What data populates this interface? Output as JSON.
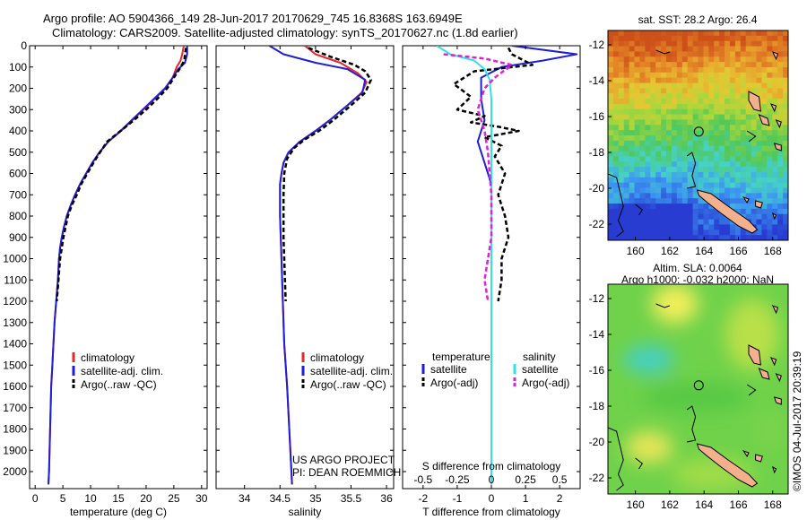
{
  "title": {
    "line1": "Argo profile: AO 5904366_149 28-Jun-2017 20170629_745 16.8368S 163.6949E",
    "line2": "Climatology: CARS2009. Satellite-adjusted climatology: synTS_20170627.nc (1.8d earlier)"
  },
  "credits": {
    "project": "US ARGO PROJECT",
    "pi": "PI: DEAN ROEMMICH",
    "stamp": "©IMOS 04-Jul-2017 20:39:19"
  },
  "colors": {
    "climatology": "#e8262a",
    "satellite": "#1f1fd6",
    "argo": "#000000",
    "sal_satellite": "#33e0e8",
    "sal_argo": "#e020d8",
    "land": "#f4b08c"
  },
  "chart_data": [
    {
      "type": "line",
      "title": "",
      "xlabel": "temperature (deg C)",
      "ylabel": "",
      "xlim": [
        -1,
        31
      ],
      "ylim": [
        2080,
        0
      ],
      "xticks": [
        0,
        5,
        10,
        15,
        20,
        25,
        30
      ],
      "yticks": [
        0,
        100,
        200,
        300,
        400,
        500,
        600,
        700,
        800,
        900,
        1000,
        1100,
        1200,
        1300,
        1400,
        1500,
        1600,
        1700,
        1800,
        1900,
        2000
      ],
      "legend": [
        "climatology",
        "satellite-adj. clim.",
        "Argo(..raw -QC)"
      ],
      "series": [
        {
          "name": "climatology",
          "style": "solid",
          "color": "climatology",
          "points": [
            [
              26.8,
              0
            ],
            [
              26.5,
              40
            ],
            [
              26.2,
              70
            ],
            [
              25.5,
              100
            ],
            [
              24.8,
              150
            ],
            [
              23.5,
              200
            ],
            [
              21.5,
              250
            ],
            [
              19.5,
              300
            ],
            [
              17.5,
              350
            ],
            [
              15.5,
              400
            ],
            [
              13.2,
              450
            ],
            [
              11.6,
              500
            ],
            [
              10.3,
              550
            ],
            [
              9.2,
              600
            ],
            [
              8.1,
              650
            ],
            [
              7.2,
              700
            ],
            [
              6.4,
              750
            ],
            [
              5.7,
              800
            ],
            [
              5.2,
              850
            ],
            [
              4.8,
              900
            ],
            [
              4.5,
              950
            ],
            [
              4.3,
              1000
            ],
            [
              4.1,
              1100
            ],
            [
              3.8,
              1200
            ],
            [
              3.5,
              1300
            ],
            [
              3.3,
              1400
            ],
            [
              3.1,
              1500
            ],
            [
              2.9,
              1600
            ],
            [
              2.8,
              1700
            ],
            [
              2.7,
              1800
            ],
            [
              2.6,
              1900
            ],
            [
              2.5,
              2000
            ],
            [
              2.4,
              2060
            ]
          ]
        },
        {
          "name": "satellite-adj. clim.",
          "style": "solid",
          "color": "satellite",
          "points": [
            [
              27.4,
              0
            ],
            [
              27.4,
              40
            ],
            [
              27.0,
              80
            ],
            [
              25.8,
              110
            ],
            [
              24.8,
              150
            ],
            [
              23.4,
              200
            ],
            [
              21.4,
              250
            ],
            [
              19.4,
              300
            ],
            [
              17.4,
              350
            ],
            [
              15.4,
              400
            ],
            [
              13.2,
              450
            ],
            [
              11.6,
              500
            ],
            [
              10.3,
              550
            ],
            [
              9.2,
              600
            ],
            [
              8.1,
              650
            ],
            [
              7.2,
              700
            ],
            [
              6.4,
              750
            ],
            [
              5.7,
              800
            ],
            [
              5.2,
              850
            ],
            [
              4.8,
              900
            ],
            [
              4.5,
              950
            ],
            [
              4.3,
              1000
            ],
            [
              4.1,
              1100
            ],
            [
              3.8,
              1200
            ],
            [
              3.5,
              1300
            ],
            [
              3.3,
              1400
            ],
            [
              3.1,
              1500
            ],
            [
              2.9,
              1600
            ],
            [
              2.8,
              1700
            ],
            [
              2.7,
              1800
            ],
            [
              2.6,
              1900
            ],
            [
              2.5,
              2000
            ],
            [
              2.4,
              2060
            ]
          ]
        },
        {
          "name": "Argo(..raw -QC)",
          "style": "dashed",
          "color": "argo",
          "points": [
            [
              27.2,
              10
            ],
            [
              27.0,
              40
            ],
            [
              26.9,
              70
            ],
            [
              26.0,
              110
            ],
            [
              25.0,
              150
            ],
            [
              23.8,
              200
            ],
            [
              22.0,
              250
            ],
            [
              20.0,
              300
            ],
            [
              17.8,
              350
            ],
            [
              15.4,
              400
            ],
            [
              13.0,
              450
            ],
            [
              11.7,
              500
            ],
            [
              10.5,
              550
            ],
            [
              9.4,
              600
            ],
            [
              8.3,
              650
            ],
            [
              7.5,
              700
            ],
            [
              6.6,
              750
            ],
            [
              5.9,
              800
            ],
            [
              5.5,
              850
            ],
            [
              5.1,
              900
            ],
            [
              4.8,
              950
            ],
            [
              4.5,
              1000
            ],
            [
              4.2,
              1100
            ],
            [
              3.9,
              1200
            ]
          ]
        }
      ]
    },
    {
      "type": "line",
      "title": "",
      "xlabel": "salinity",
      "ylabel": "",
      "xlim": [
        33.6,
        36.1
      ],
      "ylim": [
        2080,
        0
      ],
      "xticks": [
        34,
        34.5,
        35,
        35.5,
        36
      ],
      "legend": [
        "climatology",
        "satellite-adj. clim.",
        "Argo(..raw -QC)"
      ],
      "series": [
        {
          "name": "climatology",
          "style": "solid",
          "color": "climatology",
          "points": [
            [
              34.85,
              0
            ],
            [
              35.0,
              40
            ],
            [
              35.35,
              80
            ],
            [
              35.6,
              130
            ],
            [
              35.72,
              170
            ],
            [
              35.65,
              220
            ],
            [
              35.45,
              280
            ],
            [
              35.2,
              350
            ],
            [
              35.0,
              400
            ],
            [
              34.78,
              450
            ],
            [
              34.62,
              500
            ],
            [
              34.55,
              550
            ],
            [
              34.52,
              600
            ],
            [
              34.5,
              650
            ],
            [
              34.5,
              700
            ],
            [
              34.5,
              800
            ],
            [
              34.51,
              900
            ],
            [
              34.52,
              1000
            ],
            [
              34.54,
              1200
            ],
            [
              34.56,
              1400
            ],
            [
              34.6,
              1600
            ],
            [
              34.63,
              1800
            ],
            [
              34.66,
              2000
            ],
            [
              34.67,
              2060
            ]
          ]
        },
        {
          "name": "satellite-adj. clim.",
          "style": "solid",
          "color": "satellite",
          "points": [
            [
              34.35,
              0
            ],
            [
              34.55,
              40
            ],
            [
              35.0,
              80
            ],
            [
              35.45,
              110
            ],
            [
              35.7,
              160
            ],
            [
              35.66,
              220
            ],
            [
              35.45,
              280
            ],
            [
              35.2,
              350
            ],
            [
              35.0,
              400
            ],
            [
              34.78,
              450
            ],
            [
              34.62,
              500
            ],
            [
              34.55,
              550
            ],
            [
              34.52,
              600
            ],
            [
              34.5,
              650
            ],
            [
              34.5,
              700
            ],
            [
              34.5,
              800
            ],
            [
              34.51,
              900
            ],
            [
              34.52,
              1000
            ],
            [
              34.54,
              1200
            ],
            [
              34.56,
              1400
            ],
            [
              34.6,
              1600
            ],
            [
              34.63,
              1800
            ],
            [
              34.66,
              2000
            ],
            [
              34.67,
              2060
            ]
          ]
        },
        {
          "name": "Argo(..raw -QC)",
          "style": "dashed",
          "color": "argo",
          "points": [
            [
              34.9,
              10
            ],
            [
              35.2,
              50
            ],
            [
              35.55,
              90
            ],
            [
              35.7,
              120
            ],
            [
              35.78,
              160
            ],
            [
              35.7,
              220
            ],
            [
              35.5,
              280
            ],
            [
              35.25,
              350
            ],
            [
              35.05,
              400
            ],
            [
              34.85,
              440
            ],
            [
              34.7,
              480
            ],
            [
              34.6,
              530
            ],
            [
              34.56,
              600
            ],
            [
              34.55,
              700
            ],
            [
              34.55,
              800
            ],
            [
              34.55,
              900
            ],
            [
              34.56,
              1000
            ],
            [
              34.57,
              1100
            ],
            [
              34.58,
              1200
            ]
          ]
        }
      ]
    },
    {
      "type": "line",
      "title": "",
      "xlabel": "T difference from climatology",
      "xlabel2": "S difference from climatology",
      "xlim": [
        -2.6,
        2.6
      ],
      "xticks": [
        -2,
        -1,
        0,
        1,
        2
      ],
      "top_ticks": [
        "-0.5",
        "-0.25",
        "0",
        "0.25",
        "0.5"
      ],
      "top_tick_values": [
        -2,
        -1,
        0,
        1,
        2
      ],
      "ylim": [
        2080,
        0
      ],
      "legend_headers": [
        "temperature",
        "salinity"
      ],
      "legend": [
        "satellite",
        "Argo(-adj)",
        "satellite",
        "Argo(-adj)"
      ],
      "series": [
        {
          "name": "T satellite",
          "style": "solid",
          "color": "satellite",
          "points": [
            [
              0.6,
              0
            ],
            [
              2.5,
              40
            ],
            [
              1.5,
              70
            ],
            [
              0.3,
              100
            ],
            [
              -0.3,
              150
            ],
            [
              -0.3,
              250
            ],
            [
              -0.2,
              350
            ],
            [
              -0.4,
              450
            ],
            [
              -0.2,
              550
            ],
            [
              0,
              650
            ],
            [
              0,
              800
            ],
            [
              0,
              1000
            ],
            [
              0,
              1500
            ],
            [
              0,
              2000
            ],
            [
              0,
              2060
            ]
          ]
        },
        {
          "name": "T Argo(-adj)",
          "style": "dashed",
          "color": "argo",
          "points": [
            [
              0.5,
              10
            ],
            [
              0.6,
              40
            ],
            [
              1.2,
              90
            ],
            [
              -0.5,
              120
            ],
            [
              -1.1,
              180
            ],
            [
              -0.6,
              240
            ],
            [
              -1.0,
              300
            ],
            [
              -0.2,
              330
            ],
            [
              -0.6,
              360
            ],
            [
              0.2,
              380
            ],
            [
              0.8,
              400
            ],
            [
              -0.2,
              430
            ],
            [
              0.3,
              470
            ],
            [
              0.1,
              520
            ],
            [
              0.4,
              600
            ],
            [
              0.2,
              700
            ],
            [
              0.4,
              800
            ],
            [
              0.5,
              900
            ],
            [
              0.3,
              1000
            ],
            [
              0.3,
              1100
            ],
            [
              0.2,
              1200
            ]
          ]
        },
        {
          "name": "S satellite",
          "style": "solid",
          "color": "sal_satellite",
          "points": [
            [
              -1.6,
              0
            ],
            [
              -1.2,
              40
            ],
            [
              -0.5,
              70
            ],
            [
              -0.2,
              110
            ],
            [
              -0.05,
              160
            ],
            [
              0,
              250
            ],
            [
              0,
              400
            ],
            [
              0,
              600
            ],
            [
              0,
              1000
            ],
            [
              0,
              1500
            ],
            [
              0,
              2000
            ],
            [
              0,
              2060
            ]
          ]
        },
        {
          "name": "S Argo(-adj)",
          "style": "dashed",
          "color": "sal_argo",
          "points": [
            [
              -1.4,
              40
            ],
            [
              -0.2,
              60
            ],
            [
              0.6,
              90
            ],
            [
              0.1,
              150
            ],
            [
              -0.2,
              200
            ],
            [
              -0.4,
              300
            ],
            [
              -0.2,
              400
            ],
            [
              -0.1,
              500
            ],
            [
              0,
              700
            ],
            [
              0,
              900
            ],
            [
              -0.2,
              1100
            ],
            [
              -0.1,
              1200
            ]
          ]
        }
      ]
    },
    {
      "type": "heatmap",
      "title": "sat. SST: 28.2 Argo: 26.4",
      "xlabel": "",
      "ylabel": "",
      "xlim": [
        158.4,
        168.9
      ],
      "ylim": [
        -22.9,
        -11.2
      ],
      "xticks": [
        160,
        162,
        164,
        166,
        168
      ],
      "yticks": [
        -12,
        -14,
        -16,
        -18,
        -20,
        -22
      ],
      "argo_position": [
        163.69,
        -16.84
      ]
    },
    {
      "type": "heatmap",
      "title": "Altim. SLA: 0.0064",
      "subtitle": "Argo h1000: -0.032 h2000: NaN",
      "xlabel": "",
      "ylabel": "",
      "xlim": [
        158.4,
        168.9
      ],
      "ylim": [
        -22.9,
        -11.2
      ],
      "xticks": [
        160,
        162,
        164,
        166,
        168
      ],
      "yticks": [
        -12,
        -14,
        -16,
        -18,
        -20,
        -22
      ],
      "argo_position": [
        163.69,
        -16.84
      ]
    }
  ]
}
